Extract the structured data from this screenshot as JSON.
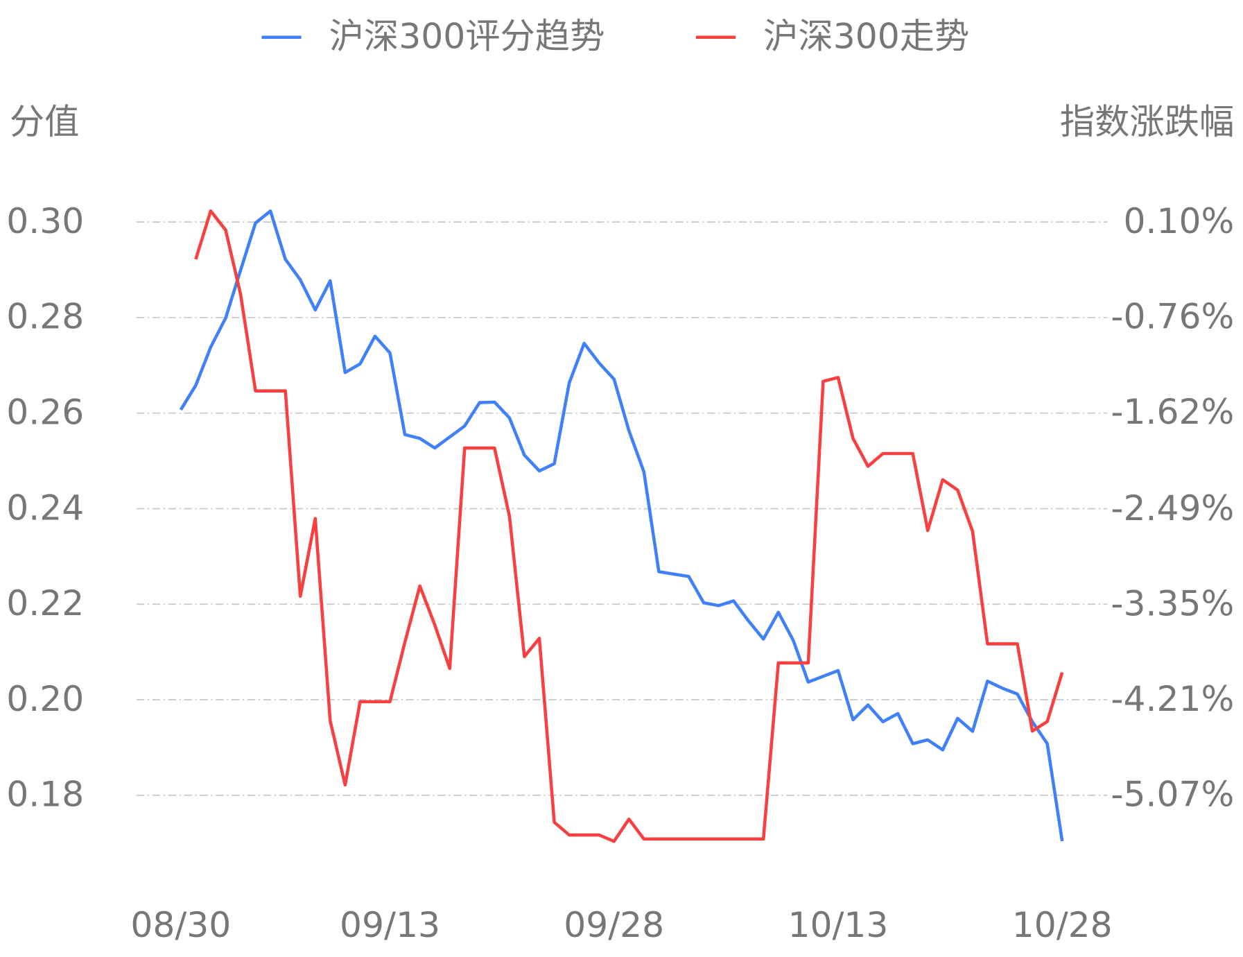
{
  "chart_data": {
    "type": "line",
    "legend": "top",
    "grid": true,
    "y_label": "分值",
    "y2_label": "指数涨跌幅",
    "categories": [
      "08/30",
      null,
      null,
      null,
      null,
      null,
      null,
      null,
      null,
      null,
      null,
      null,
      null,
      null,
      "09/13",
      null,
      null,
      null,
      null,
      null,
      null,
      null,
      null,
      null,
      null,
      null,
      null,
      null,
      null,
      "09/28",
      null,
      null,
      null,
      null,
      null,
      null,
      null,
      null,
      null,
      null,
      null,
      null,
      null,
      null,
      "10/13",
      null,
      null,
      null,
      null,
      null,
      null,
      null,
      null,
      null,
      null,
      null,
      null,
      null,
      null,
      "10/28"
    ],
    "series": [
      {
        "name": "沪深300评分趋势",
        "color": "#4080f8",
        "values": [
          0.2607,
          0.2658,
          0.2738,
          0.2799,
          0.2899,
          0.2998,
          0.3023,
          0.2922,
          0.2879,
          0.2816,
          0.2877,
          0.2685,
          0.2703,
          0.2761,
          0.2726,
          0.2555,
          0.2547,
          0.2527,
          0.255,
          0.2573,
          0.2622,
          0.2623,
          0.259,
          0.2512,
          0.2479,
          0.2494,
          0.2663,
          0.2746,
          0.2705,
          0.2671,
          0.2563,
          0.2477,
          0.2268,
          0.2263,
          0.2258,
          0.2203,
          0.2197,
          0.2207,
          0.2165,
          0.2127,
          0.2183,
          0.2124,
          0.2037,
          0.2049,
          0.2061,
          0.1958,
          0.1989,
          0.1954,
          0.1971,
          0.1908,
          0.1916,
          0.1895,
          0.1961,
          0.1934,
          0.2039,
          0.2024,
          0.2012,
          0.1954,
          0.1908,
          0.1704
        ]
      },
      {
        "name": "沪深300走势",
        "color": "#f84040",
        "axis": "y2",
        "values": [
          null,
          -0.236,
          0.2,
          0.028,
          -0.551,
          -1.423,
          -1.423,
          -1.423,
          -3.275,
          -2.574,
          -4.398,
          -4.977,
          -4.226,
          -4.226,
          -4.226,
          -3.69,
          -3.182,
          -3.533,
          -3.926,
          -1.938,
          -1.938,
          -1.938,
          -2.553,
          -3.819,
          -3.654,
          -5.313,
          -5.428,
          -5.428,
          -5.428,
          -5.485,
          -5.285,
          -5.464,
          -5.464,
          -5.464,
          -5.464,
          -5.464,
          -5.464,
          -5.464,
          -5.464,
          -5.464,
          -3.876,
          -3.876,
          -3.876,
          -1.337,
          -1.302,
          -1.852,
          -2.103,
          -1.988,
          -1.988,
          -1.988,
          -2.682,
          -2.224,
          -2.317,
          -2.689,
          -3.704,
          -3.704,
          -3.704,
          -4.491,
          -4.405,
          -3.962
        ]
      }
    ],
    "ylim": [
      0.165,
      0.305
    ],
    "yticks": [
      {
        "value": 0.3,
        "label": "0.30"
      },
      0.28,
      0.26,
      0.24,
      0.22,
      {
        "value": 0.2,
        "label": "0.20"
      },
      0.18
    ],
    "y2lim": [
      -5.716,
      0.3154
    ],
    "y2ticks": [
      {
        "value": 0.1,
        "label": "0.10%"
      },
      {
        "value": -0.76,
        "label": "-0.76%"
      },
      {
        "value": -1.62,
        "label": "-1.62%"
      },
      {
        "value": -2.49,
        "label": "-2.49%"
      },
      {
        "value": -3.35,
        "label": "-3.35%"
      },
      {
        "value": -4.21,
        "label": "-4.21%"
      },
      {
        "value": -5.07,
        "label": "-5.07%"
      }
    ]
  }
}
